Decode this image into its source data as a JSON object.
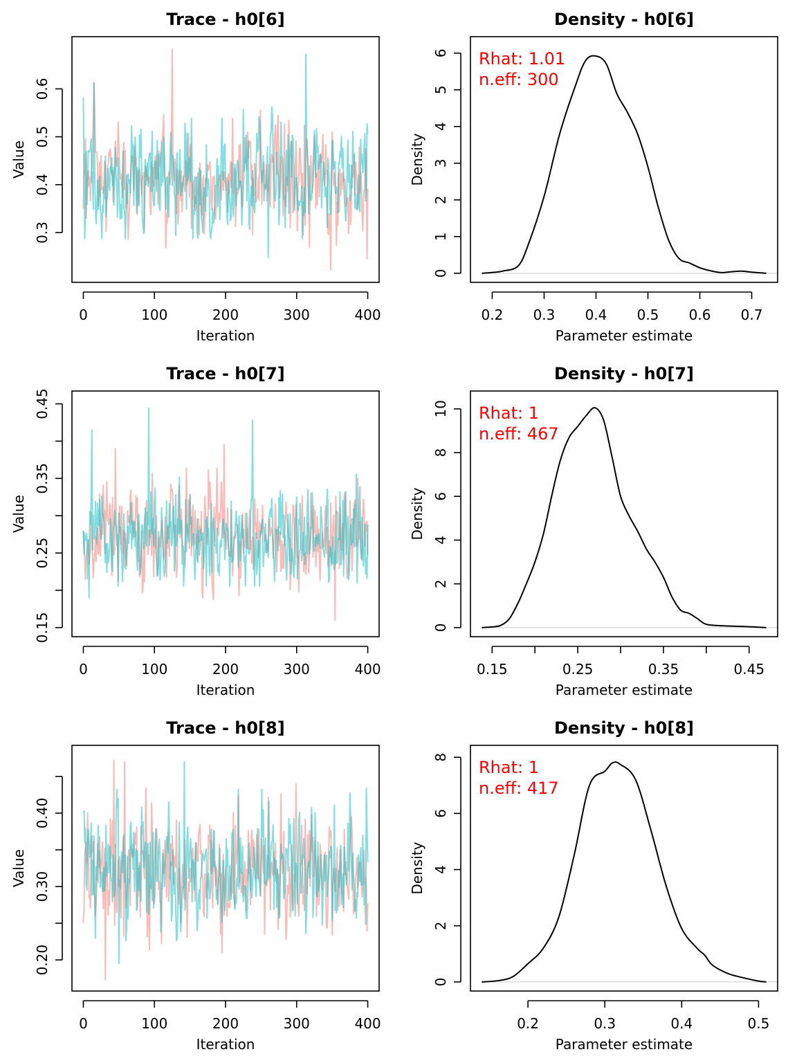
{
  "colors": {
    "chain1": "#F8766D",
    "chain2": "#00BFC4",
    "density_line": "#000000",
    "baseline": "#D9D9D9",
    "annotation": "#FF0000"
  },
  "chart_data": [
    {
      "type": "line",
      "panel": "trace",
      "title": "Trace - h0[6]",
      "xlabel": "Iteration",
      "ylabel": "Value",
      "xlim": [
        0,
        400
      ],
      "ylim": [
        0.215,
        0.69
      ],
      "xticks": [
        0,
        100,
        200,
        300,
        400
      ],
      "xtick_labels": [
        "0",
        "100",
        "200",
        "300",
        "400"
      ],
      "yticks": [
        0.3,
        0.4,
        0.5,
        0.6
      ],
      "ytick_labels": [
        "0.3",
        "0.4",
        "0.5",
        "0.6"
      ],
      "n_iter": 400,
      "series": [
        {
          "color": "#F8766D",
          "start": 0.35,
          "center": 0.405,
          "sd": 0.058,
          "min": 0.222,
          "max": 0.683,
          "spikes": [
            [
              125,
              0.683
            ],
            [
              348,
              0.222
            ],
            [
              399,
              0.245
            ]
          ]
        },
        {
          "color": "#00BFC4",
          "start": 0.582,
          "center": 0.405,
          "sd": 0.058,
          "min": 0.248,
          "max": 0.672,
          "spikes": [
            [
              313,
              0.672
            ],
            [
              15,
              0.612
            ],
            [
              260,
              0.248
            ],
            [
              399,
              0.527
            ]
          ]
        }
      ]
    },
    {
      "type": "line",
      "panel": "density",
      "title": "Density - h0[6]",
      "xlabel": "Parameter estimate",
      "ylabel": "Density",
      "xlim": [
        0.18,
        0.728
      ],
      "ylim": [
        0,
        6.2
      ],
      "xticks": [
        0.2,
        0.3,
        0.4,
        0.5,
        0.6,
        0.7
      ],
      "xtick_labels": [
        "0.2",
        "0.3",
        "0.4",
        "0.5",
        "0.6",
        "0.7"
      ],
      "yticks": [
        0,
        1,
        2,
        3,
        4,
        5,
        6
      ],
      "ytick_labels": [
        "0",
        "1",
        "2",
        "3",
        "4",
        "5",
        "6"
      ],
      "density": [
        [
          0.18,
          0.0
        ],
        [
          0.2,
          0.02
        ],
        [
          0.22,
          0.06
        ],
        [
          0.25,
          0.2
        ],
        [
          0.27,
          0.8
        ],
        [
          0.3,
          2.1
        ],
        [
          0.33,
          3.8
        ],
        [
          0.36,
          5.1
        ],
        [
          0.38,
          5.8
        ],
        [
          0.4,
          5.92
        ],
        [
          0.42,
          5.7
        ],
        [
          0.44,
          4.9
        ],
        [
          0.46,
          4.4
        ],
        [
          0.48,
          3.8
        ],
        [
          0.5,
          2.9
        ],
        [
          0.52,
          1.8
        ],
        [
          0.54,
          0.9
        ],
        [
          0.56,
          0.4
        ],
        [
          0.58,
          0.28
        ],
        [
          0.6,
          0.15
        ],
        [
          0.62,
          0.07
        ],
        [
          0.64,
          0.02
        ],
        [
          0.66,
          0.04
        ],
        [
          0.68,
          0.06
        ],
        [
          0.7,
          0.03
        ],
        [
          0.728,
          0.0
        ]
      ],
      "annotations": [
        "Rhat: 1.01",
        "n.eff: 300"
      ]
    },
    {
      "type": "line",
      "panel": "trace",
      "title": "Trace - h0[7]",
      "xlabel": "Iteration",
      "ylabel": "Value",
      "xlim": [
        0,
        400
      ],
      "ylim": [
        0.15,
        0.455
      ],
      "xticks": [
        0,
        100,
        200,
        300,
        400
      ],
      "xtick_labels": [
        "0",
        "100",
        "200",
        "300",
        "400"
      ],
      "yticks": [
        0.15,
        0.2,
        0.25,
        0.3,
        0.35,
        0.4,
        0.45
      ],
      "ytick_labels": [
        "0.15",
        "",
        "0.25",
        "",
        "0.35",
        "",
        "0.45"
      ],
      "n_iter": 400,
      "series": [
        {
          "color": "#F8766D",
          "start": 0.28,
          "center": 0.27,
          "sd": 0.033,
          "min": 0.16,
          "max": 0.395,
          "spikes": [
            [
              354,
              0.16
            ],
            [
              198,
              0.395
            ],
            [
              45,
              0.39
            ]
          ]
        },
        {
          "color": "#00BFC4",
          "start": 0.28,
          "center": 0.27,
          "sd": 0.033,
          "min": 0.184,
          "max": 0.444,
          "spikes": [
            [
              92,
              0.444
            ],
            [
              238,
              0.428
            ],
            [
              12,
              0.415
            ],
            [
              8,
              0.19
            ]
          ]
        }
      ]
    },
    {
      "type": "line",
      "panel": "density",
      "title": "Density - h0[7]",
      "xlabel": "Parameter estimate",
      "ylabel": "Density",
      "xlim": [
        0.138,
        0.47
      ],
      "ylim": [
        0,
        10.4
      ],
      "xticks": [
        0.15,
        0.2,
        0.25,
        0.3,
        0.35,
        0.4,
        0.45
      ],
      "xtick_labels": [
        "0.15",
        "",
        "0.25",
        "",
        "0.35",
        "",
        "0.45"
      ],
      "yticks": [
        0,
        2,
        4,
        6,
        8,
        10
      ],
      "ytick_labels": [
        "0",
        "2",
        "4",
        "6",
        "8",
        "10"
      ],
      "density": [
        [
          0.138,
          0.0
        ],
        [
          0.15,
          0.03
        ],
        [
          0.16,
          0.1
        ],
        [
          0.17,
          0.4
        ],
        [
          0.18,
          1.1
        ],
        [
          0.19,
          2.0
        ],
        [
          0.2,
          3.0
        ],
        [
          0.21,
          4.3
        ],
        [
          0.22,
          6.1
        ],
        [
          0.23,
          7.7
        ],
        [
          0.24,
          8.7
        ],
        [
          0.25,
          9.2
        ],
        [
          0.26,
          9.7
        ],
        [
          0.27,
          10.05
        ],
        [
          0.28,
          9.5
        ],
        [
          0.29,
          7.8
        ],
        [
          0.3,
          6.0
        ],
        [
          0.31,
          5.1
        ],
        [
          0.32,
          4.4
        ],
        [
          0.33,
          3.6
        ],
        [
          0.34,
          3.0
        ],
        [
          0.35,
          2.3
        ],
        [
          0.36,
          1.4
        ],
        [
          0.37,
          0.8
        ],
        [
          0.38,
          0.65
        ],
        [
          0.39,
          0.4
        ],
        [
          0.4,
          0.15
        ],
        [
          0.42,
          0.08
        ],
        [
          0.45,
          0.04
        ],
        [
          0.47,
          0.0
        ]
      ],
      "annotations": [
        "Rhat: 1",
        "n.eff: 467"
      ]
    },
    {
      "type": "line",
      "panel": "trace",
      "title": "Trace - h0[8]",
      "xlabel": "Iteration",
      "ylabel": "Value",
      "xlim": [
        0,
        400
      ],
      "ylim": [
        0.17,
        0.48
      ],
      "xticks": [
        0,
        100,
        200,
        300,
        400
      ],
      "xtick_labels": [
        "0",
        "100",
        "200",
        "300",
        "400"
      ],
      "yticks": [
        0.2,
        0.25,
        0.3,
        0.35,
        0.4,
        0.45
      ],
      "ytick_labels": [
        "0.20",
        "",
        "0.30",
        "",
        "0.40",
        ""
      ],
      "n_iter": 400,
      "series": [
        {
          "color": "#F8766D",
          "start": 0.25,
          "center": 0.32,
          "sd": 0.04,
          "min": 0.173,
          "max": 0.472,
          "spikes": [
            [
              31,
              0.173
            ],
            [
              43,
              0.472
            ],
            [
              58,
              0.47
            ],
            [
              299,
              0.44
            ]
          ]
        },
        {
          "color": "#00BFC4",
          "start": 0.4,
          "center": 0.32,
          "sd": 0.04,
          "min": 0.195,
          "max": 0.47,
          "spikes": [
            [
              142,
              0.47
            ],
            [
              50,
              0.195
            ],
            [
              398,
              0.434
            ]
          ]
        }
      ]
    },
    {
      "type": "line",
      "panel": "density",
      "title": "Density - h0[8]",
      "xlabel": "Parameter estimate",
      "ylabel": "Density",
      "xlim": [
        0.14,
        0.51
      ],
      "ylim": [
        0,
        8.1
      ],
      "xticks": [
        0.2,
        0.3,
        0.4,
        0.5
      ],
      "xtick_labels": [
        "0.2",
        "0.3",
        "0.4",
        "0.5"
      ],
      "yticks": [
        0,
        2,
        4,
        6,
        8
      ],
      "ytick_labels": [
        "0",
        "2",
        "4",
        "6",
        "8"
      ],
      "density": [
        [
          0.14,
          0.0
        ],
        [
          0.16,
          0.04
        ],
        [
          0.18,
          0.18
        ],
        [
          0.2,
          0.65
        ],
        [
          0.22,
          1.2
        ],
        [
          0.24,
          2.3
        ],
        [
          0.26,
          4.5
        ],
        [
          0.28,
          7.0
        ],
        [
          0.3,
          7.5
        ],
        [
          0.31,
          7.8
        ],
        [
          0.32,
          7.75
        ],
        [
          0.34,
          7.2
        ],
        [
          0.36,
          5.4
        ],
        [
          0.38,
          3.4
        ],
        [
          0.4,
          1.9
        ],
        [
          0.42,
          1.2
        ],
        [
          0.43,
          0.95
        ],
        [
          0.44,
          0.6
        ],
        [
          0.46,
          0.3
        ],
        [
          0.48,
          0.15
        ],
        [
          0.5,
          0.03
        ],
        [
          0.51,
          0.0
        ]
      ],
      "annotations": [
        "Rhat: 1",
        "n.eff: 417"
      ]
    }
  ]
}
